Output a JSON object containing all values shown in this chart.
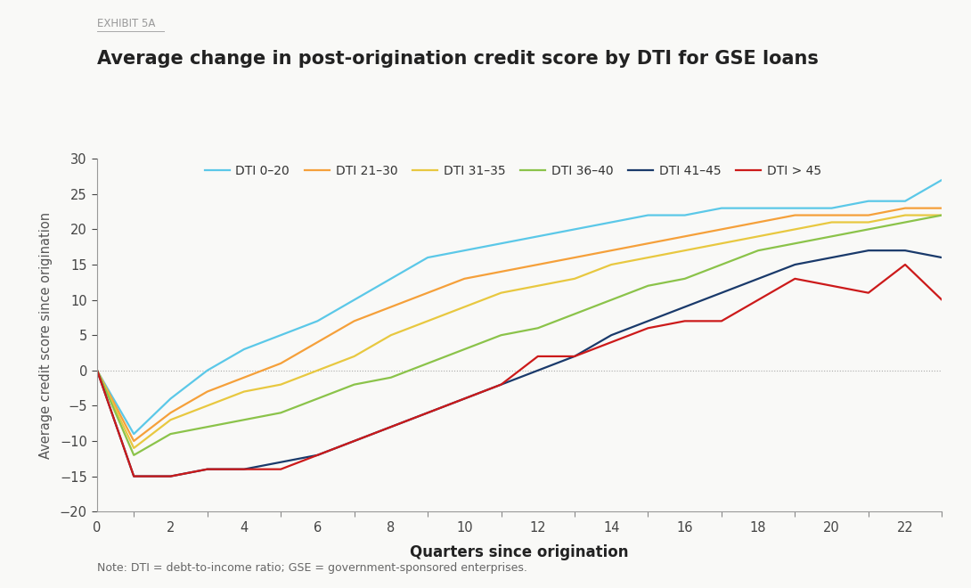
{
  "title": "Average change in post-origination credit score by DTI for GSE loans",
  "exhibit_label": "EXHIBIT 5A",
  "xlabel": "Quarters since origination",
  "ylabel": "Average credit score since origination",
  "note": "Note: DTI = debt-to-income ratio; GSE = government-sponsored enterprises.",
  "xlim": [
    0,
    23
  ],
  "ylim": [
    -20,
    30
  ],
  "yticks": [
    -20,
    -15,
    -10,
    -5,
    0,
    5,
    10,
    15,
    20,
    25,
    30
  ],
  "xticks": [
    0,
    2,
    4,
    6,
    8,
    10,
    12,
    14,
    16,
    18,
    20,
    22
  ],
  "background_color": "#f9f9f7",
  "series": [
    {
      "label": "DTI 0–20",
      "color": "#5bc8e8",
      "data": [
        0,
        -9,
        -4,
        0,
        3,
        5,
        7,
        10,
        13,
        16,
        17,
        18,
        19,
        20,
        21,
        22,
        22,
        23,
        23,
        23,
        23,
        24,
        24,
        27
      ]
    },
    {
      "label": "DTI 21–30",
      "color": "#f5a03a",
      "data": [
        0,
        -10,
        -6,
        -3,
        -1,
        1,
        4,
        7,
        9,
        11,
        13,
        14,
        15,
        16,
        17,
        18,
        19,
        20,
        21,
        22,
        22,
        22,
        23,
        23
      ]
    },
    {
      "label": "DTI 31–35",
      "color": "#e8c840",
      "data": [
        0,
        -11,
        -7,
        -5,
        -3,
        -2,
        0,
        2,
        5,
        7,
        9,
        11,
        12,
        13,
        15,
        16,
        17,
        18,
        19,
        20,
        21,
        21,
        22,
        22
      ]
    },
    {
      "label": "DTI 36–40",
      "color": "#8bc34a",
      "data": [
        0,
        -12,
        -9,
        -8,
        -7,
        -6,
        -4,
        -2,
        -1,
        1,
        3,
        5,
        6,
        8,
        10,
        12,
        13,
        15,
        17,
        18,
        19,
        20,
        21,
        22
      ]
    },
    {
      "label": "DTI 41–45",
      "color": "#1a3a6b",
      "data": [
        0,
        -15,
        -15,
        -14,
        -14,
        -13,
        -12,
        -10,
        -8,
        -6,
        -4,
        -2,
        0,
        2,
        5,
        7,
        9,
        11,
        13,
        15,
        16,
        17,
        17,
        16
      ]
    },
    {
      "label": "DTI > 45",
      "color": "#cc1a1a",
      "data": [
        0,
        -15,
        -15,
        -14,
        -14,
        -14,
        -12,
        -10,
        -8,
        -6,
        -4,
        -2,
        2,
        2,
        4,
        6,
        7,
        7,
        10,
        13,
        12,
        11,
        15,
        10
      ]
    }
  ]
}
